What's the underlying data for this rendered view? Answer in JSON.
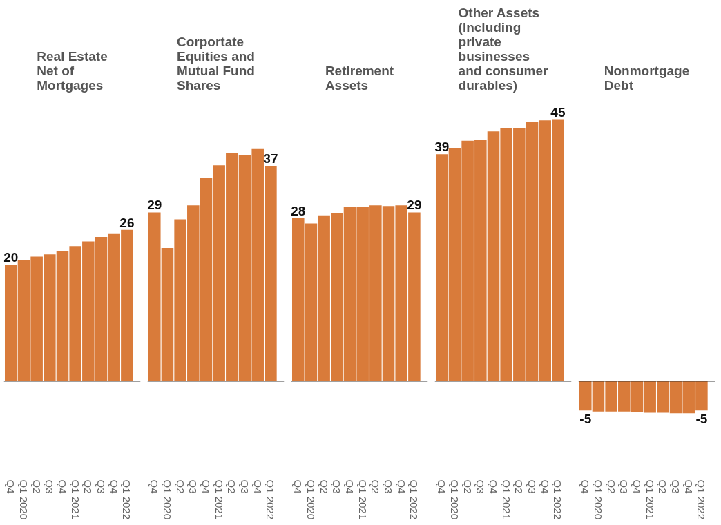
{
  "chart_data": [
    {
      "type": "bar",
      "title": "Real Estate\nNet of\nMortgages",
      "categories": [
        "Q4",
        "Q1 2020",
        "Q2",
        "Q3",
        "Q4",
        "Q1 2021",
        "Q2",
        "Q3",
        "Q4",
        "Q1 2022"
      ],
      "values": [
        20,
        20.8,
        21.4,
        21.8,
        22.4,
        23.2,
        24.0,
        24.8,
        25.3,
        26
      ],
      "value_labels": [
        "20",
        null,
        null,
        null,
        null,
        null,
        null,
        null,
        null,
        "26"
      ],
      "color": "#d97b3a",
      "tick_labels": "x"
    },
    {
      "type": "bar",
      "title": "Corportate\nEquities and\nMutual Fund\nShares",
      "categories": [
        "Q4",
        "Q1 2020",
        "Q2",
        "Q3",
        "Q4",
        "Q1 2021",
        "Q2",
        "Q3",
        "Q4",
        "Q1 2022"
      ],
      "values": [
        29,
        22.9,
        27.8,
        30.2,
        34.9,
        37.1,
        39.2,
        38.8,
        40.0,
        37
      ],
      "value_labels": [
        "29",
        null,
        null,
        null,
        null,
        null,
        null,
        null,
        null,
        "37"
      ],
      "color": "#d97b3a",
      "tick_labels": "x"
    },
    {
      "type": "bar",
      "title": "Retirement\nAssets",
      "categories": [
        "Q4",
        "Q1 2020",
        "Q2",
        "Q3",
        "Q4",
        "Q1 2021",
        "Q2",
        "Q3",
        "Q4",
        "Q1 2022"
      ],
      "values": [
        28,
        27.1,
        28.5,
        28.9,
        29.9,
        30.0,
        30.2,
        30.1,
        30.2,
        29
      ],
      "value_labels": [
        "28",
        null,
        null,
        null,
        null,
        null,
        null,
        null,
        null,
        "29"
      ],
      "color": "#d97b3a",
      "tick_labels": "x"
    },
    {
      "type": "bar",
      "title": "Other Assets\n(Including\nprivate\nbusinesses\nand consumer\ndurables)",
      "categories": [
        "Q4",
        "Q1 2020",
        "Q2",
        "Q3",
        "Q4",
        "Q1 2021",
        "Q2",
        "Q3",
        "Q4",
        "Q1 2022"
      ],
      "values": [
        39,
        40.1,
        41.3,
        41.4,
        42.9,
        43.5,
        43.5,
        44.5,
        44.8,
        45
      ],
      "value_labels": [
        "39",
        null,
        null,
        null,
        null,
        null,
        null,
        null,
        null,
        "45"
      ],
      "color": "#d97b3a",
      "tick_labels": "x"
    },
    {
      "type": "bar",
      "title": "Nonmortgage\nDebt",
      "categories": [
        "Q4",
        "Q1 2020",
        "Q2",
        "Q3",
        "Q4",
        "Q1 2021",
        "Q2",
        "Q3",
        "Q4",
        "Q1 2022"
      ],
      "values": [
        -5,
        -5.2,
        -5.2,
        -5.2,
        -5.3,
        -5.4,
        -5.4,
        -5.5,
        -5.5,
        -5
      ],
      "value_labels": [
        "-5",
        null,
        null,
        null,
        null,
        null,
        null,
        null,
        null,
        "-5"
      ],
      "color": "#d97b3a",
      "tick_labels": "x"
    }
  ]
}
